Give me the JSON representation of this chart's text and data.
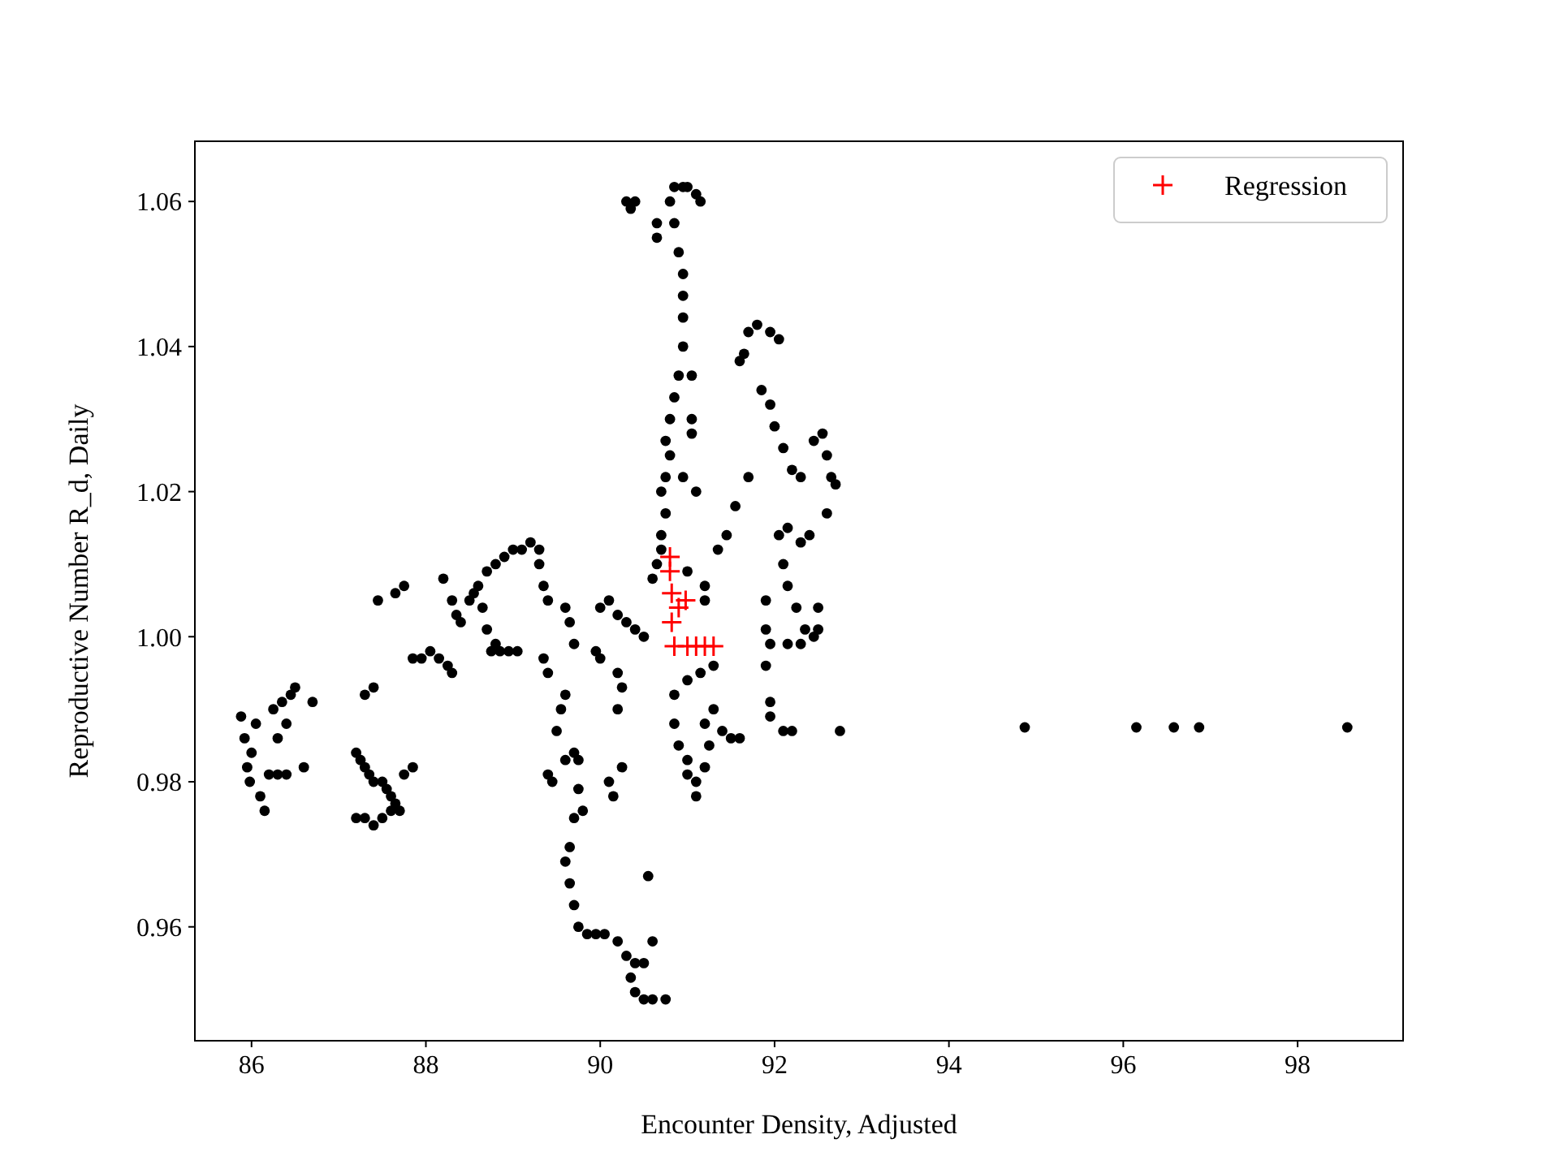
{
  "chart_data": {
    "type": "scatter",
    "xlabel": "Encounter Density, Adjusted",
    "ylabel": "Reproductive Number R_d, Daily",
    "xlim": [
      85.35,
      99.21
    ],
    "ylim": [
      0.9443,
      1.0683
    ],
    "xticks": [
      86,
      88,
      90,
      92,
      94,
      96,
      98
    ],
    "yticks": [
      0.96,
      0.98,
      {
        "value": 1.0,
        "label": "1.00"
      },
      1.02,
      1.04,
      1.06
    ],
    "grid": false,
    "legend": "top right",
    "series": [
      {
        "color": "#000000",
        "marker": "circle",
        "x": [
          85.88,
          85.92,
          85.95,
          85.98,
          86.0,
          86.05,
          86.1,
          86.15,
          86.2,
          86.3,
          86.4,
          86.25,
          86.35,
          86.45,
          86.5,
          86.3,
          86.4,
          86.6,
          86.7,
          87.2,
          87.25,
          87.3,
          87.35,
          87.4,
          87.5,
          87.55,
          87.6,
          87.65,
          87.7,
          87.75,
          87.85,
          87.2,
          87.3,
          87.4,
          87.5,
          87.6,
          87.3,
          87.4,
          87.45,
          87.65,
          87.75,
          87.85,
          87.95,
          88.05,
          88.15,
          88.25,
          88.3,
          88.2,
          88.3,
          88.35,
          88.4,
          88.5,
          88.55,
          88.6,
          88.65,
          88.7,
          88.75,
          88.8,
          88.85,
          88.95,
          89.05,
          88.7,
          88.8,
          88.9,
          89.0,
          89.1,
          89.2,
          89.3,
          89.3,
          89.35,
          89.4,
          89.35,
          89.4,
          89.6,
          89.65,
          89.7,
          89.6,
          89.55,
          89.5,
          89.4,
          89.45,
          89.6,
          89.7,
          89.75,
          89.75,
          89.8,
          89.7,
          89.65,
          89.6,
          89.65,
          89.7,
          89.75,
          89.85,
          89.95,
          90.05,
          90.2,
          90.3,
          90.35,
          90.4,
          90.5,
          90.6,
          90.75,
          90.4,
          90.5,
          90.6,
          90.55,
          90.1,
          90.15,
          90.25,
          89.95,
          90.0,
          90.0,
          90.1,
          90.2,
          90.3,
          90.4,
          90.5,
          90.2,
          90.25,
          90.2,
          90.6,
          90.7,
          90.65,
          90.7,
          90.75,
          90.7,
          90.75,
          90.8,
          90.75,
          90.8,
          90.85,
          90.9,
          90.95,
          90.95,
          90.95,
          90.95,
          90.9,
          90.85,
          90.8,
          90.85,
          90.95,
          91.0,
          91.1,
          91.15,
          90.4,
          90.35,
          90.3,
          90.65,
          90.65,
          91.05,
          91.05,
          90.95,
          91.05,
          91.1,
          91.65,
          91.7,
          91.6,
          91.8,
          91.95,
          92.05,
          91.85,
          91.95,
          92.0,
          92.1,
          92.2,
          92.3,
          92.45,
          92.55,
          92.6,
          92.65,
          92.7,
          92.6,
          92.4,
          92.3,
          92.15,
          92.05,
          92.1,
          92.15,
          92.25,
          92.35,
          92.45,
          92.5,
          92.5,
          92.3,
          92.15,
          91.95,
          91.9,
          91.95,
          91.95,
          92.1,
          92.2,
          92.75,
          91.9,
          91.9,
          91.2,
          91.35,
          91.45,
          91.55,
          91.7,
          91.2,
          91.0,
          91.3,
          91.15,
          91.0,
          90.85,
          90.85,
          90.9,
          91.0,
          91.1,
          91.2,
          91.25,
          91.2,
          91.4,
          91.5,
          91.6,
          91.1,
          91.0,
          91.3,
          94.87,
          96.15,
          96.58,
          96.87,
          98.57
        ],
        "values": [
          0.989,
          0.986,
          0.982,
          0.98,
          0.984,
          0.988,
          0.978,
          0.976,
          0.981,
          0.981,
          0.981,
          0.99,
          0.991,
          0.992,
          0.993,
          0.986,
          0.988,
          0.982,
          0.991,
          0.984,
          0.983,
          0.982,
          0.981,
          0.98,
          0.98,
          0.979,
          0.978,
          0.977,
          0.976,
          0.981,
          0.982,
          0.975,
          0.975,
          0.974,
          0.975,
          0.976,
          0.992,
          0.993,
          1.005,
          1.006,
          1.007,
          0.997,
          0.997,
          0.998,
          0.997,
          0.996,
          0.995,
          1.008,
          1.005,
          1.003,
          1.002,
          1.005,
          1.006,
          1.007,
          1.004,
          1.001,
          0.998,
          0.999,
          0.998,
          0.998,
          0.998,
          1.009,
          1.01,
          1.011,
          1.012,
          1.012,
          1.013,
          1.012,
          1.01,
          1.007,
          1.005,
          0.997,
          0.995,
          1.004,
          1.002,
          0.999,
          0.992,
          0.99,
          0.987,
          0.981,
          0.98,
          0.983,
          0.984,
          0.983,
          0.979,
          0.976,
          0.975,
          0.971,
          0.969,
          0.966,
          0.963,
          0.96,
          0.959,
          0.959,
          0.959,
          0.958,
          0.956,
          0.953,
          0.951,
          0.95,
          0.95,
          0.95,
          0.955,
          0.955,
          0.958,
          0.967,
          0.98,
          0.978,
          0.982,
          0.998,
          0.997,
          1.004,
          1.005,
          1.003,
          1.002,
          1.001,
          1.0,
          0.995,
          0.993,
          0.99,
          1.008,
          1.012,
          1.01,
          1.014,
          1.017,
          1.02,
          1.022,
          1.025,
          1.027,
          1.03,
          1.033,
          1.036,
          1.04,
          1.044,
          1.047,
          1.05,
          1.053,
          1.057,
          1.06,
          1.062,
          1.062,
          1.062,
          1.061,
          1.06,
          1.06,
          1.059,
          1.06,
          1.057,
          1.055,
          1.036,
          1.028,
          1.022,
          1.03,
          1.02,
          1.039,
          1.042,
          1.038,
          1.043,
          1.042,
          1.041,
          1.034,
          1.032,
          1.029,
          1.026,
          1.023,
          1.022,
          1.027,
          1.028,
          1.025,
          1.022,
          1.021,
          1.017,
          1.014,
          1.013,
          1.015,
          1.014,
          1.01,
          1.007,
          1.004,
          1.001,
          1.0,
          1.004,
          1.001,
          0.999,
          0.999,
          0.999,
          0.996,
          0.991,
          0.989,
          0.987,
          0.987,
          0.987,
          1.001,
          1.005,
          1.007,
          1.012,
          1.014,
          1.018,
          1.022,
          1.005,
          1.009,
          0.996,
          0.995,
          0.994,
          0.992,
          0.988,
          0.985,
          0.983,
          0.98,
          0.982,
          0.985,
          0.988,
          0.987,
          0.986,
          0.986,
          0.978,
          0.981,
          0.99,
          0.9875,
          0.9875,
          0.9875,
          0.9875,
          0.9875
        ]
      },
      {
        "name": "Regression",
        "color": "#ff0000",
        "marker": "cross",
        "x": [
          90.8,
          90.8,
          90.82,
          90.98,
          90.9,
          90.82,
          90.85,
          91.0,
          91.1,
          91.2,
          91.3
        ],
        "values": [
          1.011,
          1.009,
          1.006,
          1.005,
          1.004,
          1.002,
          0.9987,
          0.9987,
          0.9987,
          0.9987,
          0.9987
        ]
      }
    ]
  }
}
